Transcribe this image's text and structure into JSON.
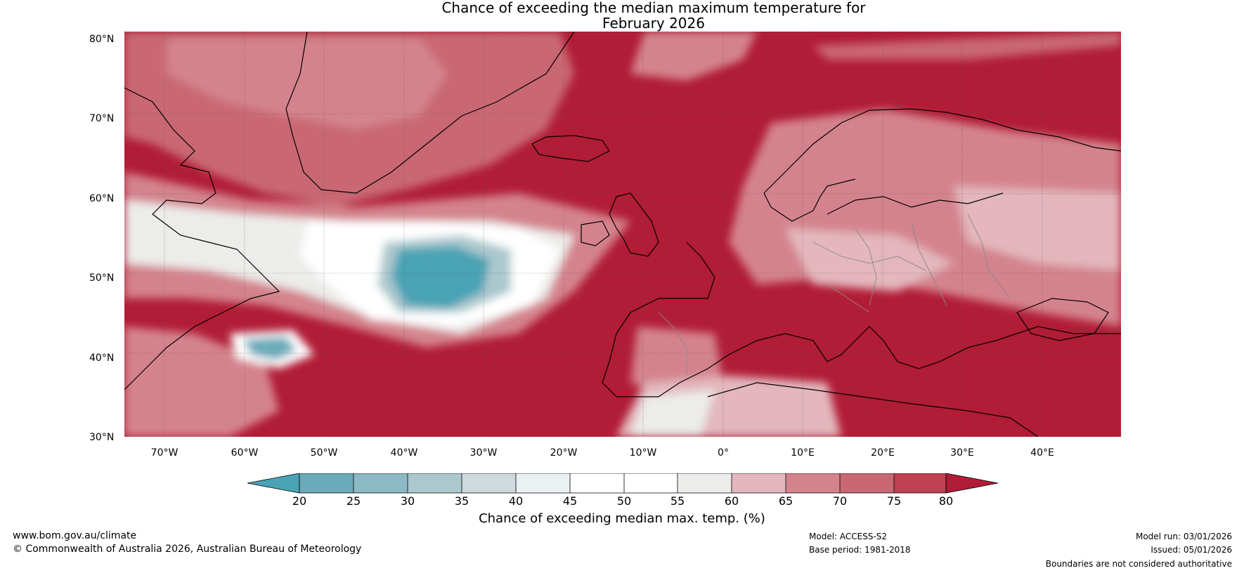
{
  "title": {
    "line1": "Chance of exceeding the median maximum temperature for",
    "line2": "February 2026"
  },
  "map": {
    "type": "contour-map",
    "region": "North Atlantic and Europe",
    "lat_labels": [
      "80°N",
      "70°N",
      "60°N",
      "50°N",
      "40°N",
      "30°N"
    ],
    "lon_labels": [
      "70°W",
      "60°W",
      "50°W",
      "40°W",
      "30°W",
      "20°W",
      "10°W",
      "0°",
      "10°E",
      "20°E",
      "30°E",
      "40°E"
    ]
  },
  "colorbar": {
    "label": "Chance of exceeding median max. temp. (%)",
    "ticks": [
      "20",
      "25",
      "30",
      "35",
      "40",
      "45",
      "50",
      "55",
      "60",
      "65",
      "70",
      "75",
      "80"
    ],
    "colors": [
      "#4aa3b5",
      "#6aabba",
      "#8bbac5",
      "#abc8cd",
      "#cfdade",
      "#e9f1f3",
      "#ffffff",
      "#ffffff",
      "#ececea",
      "#e3b7bd",
      "#d4838c",
      "#c96872",
      "#bf4152",
      "#b11c36"
    ]
  },
  "footer": {
    "website": "www.bom.gov.au/climate",
    "copyright": "© Commonwealth of Australia 2026, Australian Bureau of Meteorology",
    "model": "Model: ACCESS-S2",
    "base_period": "Base period: 1981-2018",
    "model_run": "Model run: 03/01/2026",
    "issued": "Issued: 05/01/2026",
    "disclaimer": "Boundaries are not considered authoritative"
  }
}
